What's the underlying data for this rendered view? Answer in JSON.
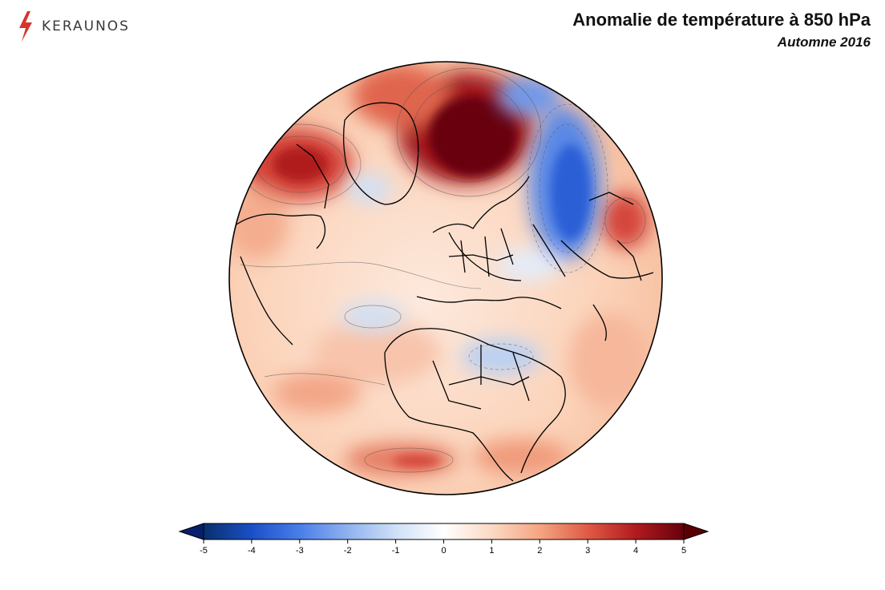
{
  "brand": {
    "name": "KERAUNOS",
    "logo_icon": "lightning-bolt-icon",
    "accent": "#d8352a"
  },
  "header": {
    "title": "Anomalie de température à 850 hPa",
    "subtitle": "Automne 2016"
  },
  "colorbar": {
    "ticks": [
      "-5",
      "-4",
      "-3",
      "-2",
      "-1",
      "0",
      "1",
      "2",
      "3",
      "4",
      "5"
    ],
    "range": [
      -5,
      5
    ],
    "extend": "both",
    "low_color": "#08206b",
    "high_color": "#5a0000",
    "colors": [
      "#08306b",
      "#1b4fc8",
      "#4a7ee8",
      "#8fb2ef",
      "#cfe0f7",
      "#ffffff",
      "#fbd9c4",
      "#f4a582",
      "#e05a45",
      "#b01b1e",
      "#67000d"
    ]
  }
}
